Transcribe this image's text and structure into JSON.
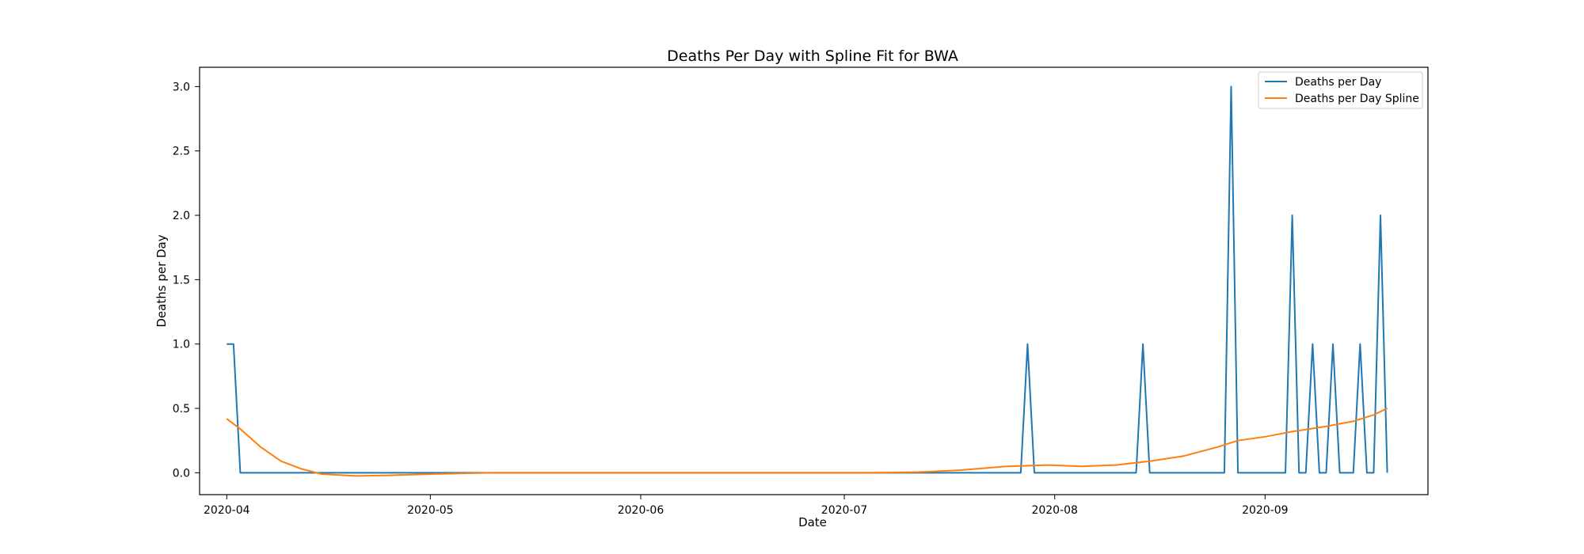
{
  "chart_data": {
    "type": "line",
    "title": "Deaths Per Day with Spline Fit for BWA",
    "xlabel": "Date",
    "ylabel": "Deaths per Day",
    "x_range": [
      "2020-03-28",
      "2020-09-25"
    ],
    "ylim": [
      -0.17,
      3.15
    ],
    "x_ticks": [
      "2020-04",
      "2020-05",
      "2020-06",
      "2020-07",
      "2020-08",
      "2020-09"
    ],
    "x_tick_dates": [
      "2020-04-01",
      "2020-05-01",
      "2020-06-01",
      "2020-07-01",
      "2020-08-01",
      "2020-09-01"
    ],
    "y_ticks": [
      "0.0",
      "0.5",
      "1.0",
      "1.5",
      "2.0",
      "2.5",
      "3.0"
    ],
    "y_tick_values": [
      0,
      0.5,
      1.0,
      1.5,
      2.0,
      2.5,
      3.0
    ],
    "grid": false,
    "legend_position": "top-right",
    "series": [
      {
        "name": "Deaths per Day",
        "color": "#1f77b4",
        "points": [
          [
            "2020-04-01",
            1
          ],
          [
            "2020-04-02",
            1
          ],
          [
            "2020-04-03",
            0
          ],
          [
            "2020-07-27",
            0
          ],
          [
            "2020-07-28",
            1
          ],
          [
            "2020-07-29",
            0
          ],
          [
            "2020-08-13",
            0
          ],
          [
            "2020-08-14",
            1
          ],
          [
            "2020-08-15",
            0
          ],
          [
            "2020-08-26",
            0
          ],
          [
            "2020-08-27",
            3
          ],
          [
            "2020-08-28",
            0
          ],
          [
            "2020-09-04",
            0
          ],
          [
            "2020-09-05",
            2
          ],
          [
            "2020-09-06",
            0
          ],
          [
            "2020-09-07",
            0
          ],
          [
            "2020-09-08",
            1
          ],
          [
            "2020-09-09",
            0
          ],
          [
            "2020-09-10",
            0
          ],
          [
            "2020-09-11",
            1
          ],
          [
            "2020-09-12",
            0
          ],
          [
            "2020-09-14",
            0
          ],
          [
            "2020-09-15",
            1
          ],
          [
            "2020-09-16",
            0
          ],
          [
            "2020-09-17",
            0
          ],
          [
            "2020-09-18",
            2
          ],
          [
            "2020-09-19",
            0
          ]
        ]
      },
      {
        "name": "Deaths per Day Spline",
        "color": "#ff7f0e",
        "points": [
          [
            "2020-04-01",
            0.42
          ],
          [
            "2020-04-03",
            0.34
          ],
          [
            "2020-04-06",
            0.2
          ],
          [
            "2020-04-09",
            0.09
          ],
          [
            "2020-04-12",
            0.03
          ],
          [
            "2020-04-15",
            -0.01
          ],
          [
            "2020-04-20",
            -0.025
          ],
          [
            "2020-04-25",
            -0.02
          ],
          [
            "2020-05-01",
            -0.01
          ],
          [
            "2020-05-10",
            0.0
          ],
          [
            "2020-06-01",
            0.0
          ],
          [
            "2020-06-20",
            0.0
          ],
          [
            "2020-07-05",
            0.0
          ],
          [
            "2020-07-12",
            0.005
          ],
          [
            "2020-07-18",
            0.02
          ],
          [
            "2020-07-25",
            0.05
          ],
          [
            "2020-07-31",
            0.06
          ],
          [
            "2020-08-05",
            0.05
          ],
          [
            "2020-08-10",
            0.06
          ],
          [
            "2020-08-15",
            0.09
          ],
          [
            "2020-08-20",
            0.13
          ],
          [
            "2020-08-25",
            0.2
          ],
          [
            "2020-08-28",
            0.25
          ],
          [
            "2020-09-01",
            0.28
          ],
          [
            "2020-09-05",
            0.32
          ],
          [
            "2020-09-10",
            0.36
          ],
          [
            "2020-09-14",
            0.4
          ],
          [
            "2020-09-17",
            0.45
          ],
          [
            "2020-09-19",
            0.5
          ]
        ]
      }
    ]
  }
}
